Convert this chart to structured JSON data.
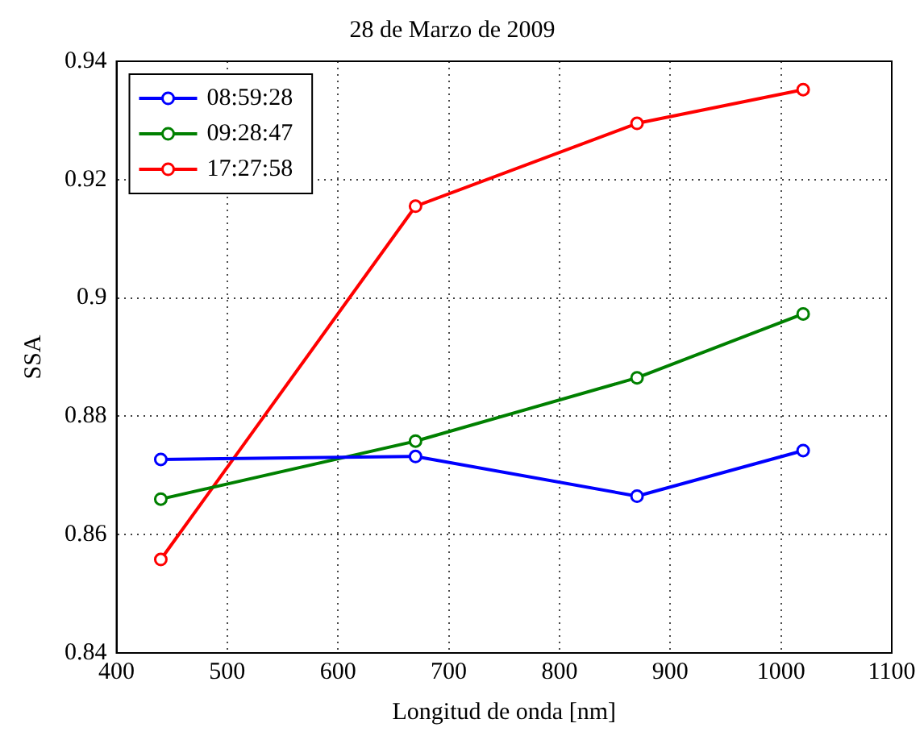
{
  "chart_data": {
    "type": "line",
    "title": "28 de Marzo de 2009",
    "xlabel": "Longitud de onda [nm]",
    "ylabel": "SSA",
    "x": [
      440,
      670,
      870,
      1020
    ],
    "series": [
      {
        "name": "08:59:28",
        "color": "#0000ff",
        "values": [
          0.8727,
          0.8732,
          0.8665,
          0.8742
        ]
      },
      {
        "name": "09:28:47",
        "color": "#008000",
        "values": [
          0.866,
          0.8758,
          0.8865,
          0.8973
        ]
      },
      {
        "name": "17:27:58",
        "color": "#ff0000",
        "values": [
          0.8558,
          0.9155,
          0.9295,
          0.9352
        ]
      }
    ],
    "xlim": [
      400,
      1100
    ],
    "xticks": [
      400,
      500,
      600,
      700,
      800,
      900,
      1000,
      1100
    ],
    "ylim": [
      0.84,
      0.94
    ],
    "yticks": [
      0.84,
      0.86,
      0.88,
      0.9,
      0.92,
      0.94
    ],
    "grid": true,
    "legend": "top left",
    "marker": "circle",
    "line_style": "solid"
  }
}
